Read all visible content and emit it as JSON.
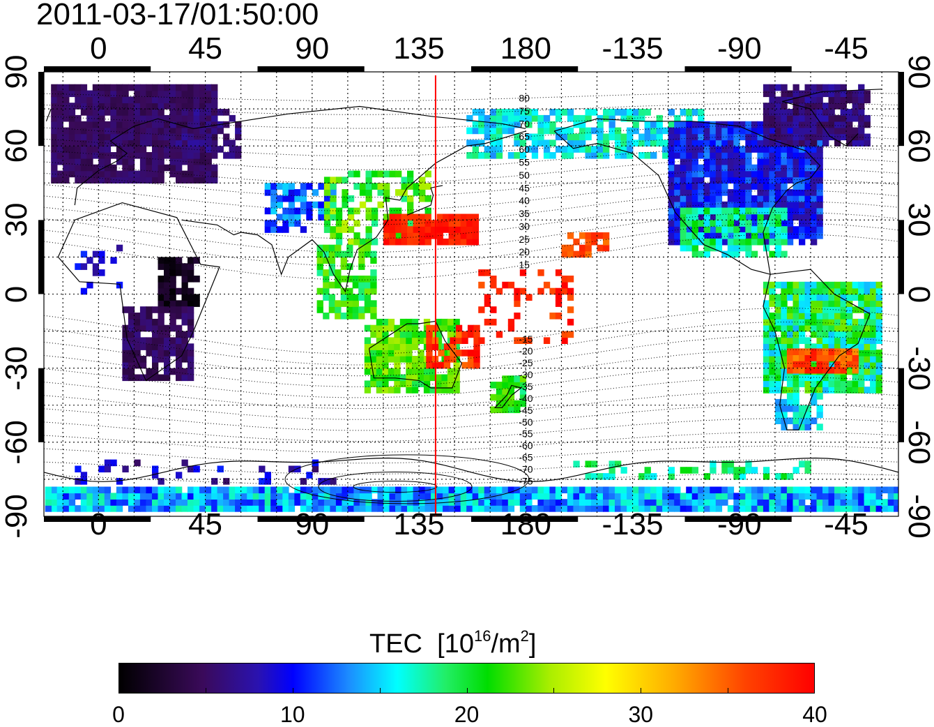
{
  "title": "2011-03-17/01:50:00",
  "x_ticks": [
    "0",
    "45",
    "90",
    "135",
    "180",
    "-135",
    "-90",
    "-45"
  ],
  "y_ticks": [
    "90",
    "60",
    "30",
    "0",
    "-30",
    "-60",
    "-90"
  ],
  "lat_contours_north": [
    "80",
    "75",
    "70",
    "65",
    "60",
    "55",
    "50",
    "45",
    "40",
    "35",
    "30",
    "25",
    "20",
    "15"
  ],
  "lat_contours_south": [
    "-15",
    "-20",
    "-25",
    "-30",
    "-35",
    "-40",
    "-45",
    "-50",
    "-55",
    "-60",
    "-65",
    "-70",
    "-75"
  ],
  "marker_longitude": 142,
  "colorbar": {
    "title": "TEC",
    "unit_base": "[10",
    "unit_exp": "16",
    "unit_tail": "/m",
    "unit_sq": "2",
    "unit_close": "]",
    "labels": [
      "0",
      "10",
      "20",
      "30",
      "40"
    ],
    "range": [
      0,
      40
    ]
  },
  "colors": {
    "marker": "#ff0000",
    "frame": "#000000"
  }
}
